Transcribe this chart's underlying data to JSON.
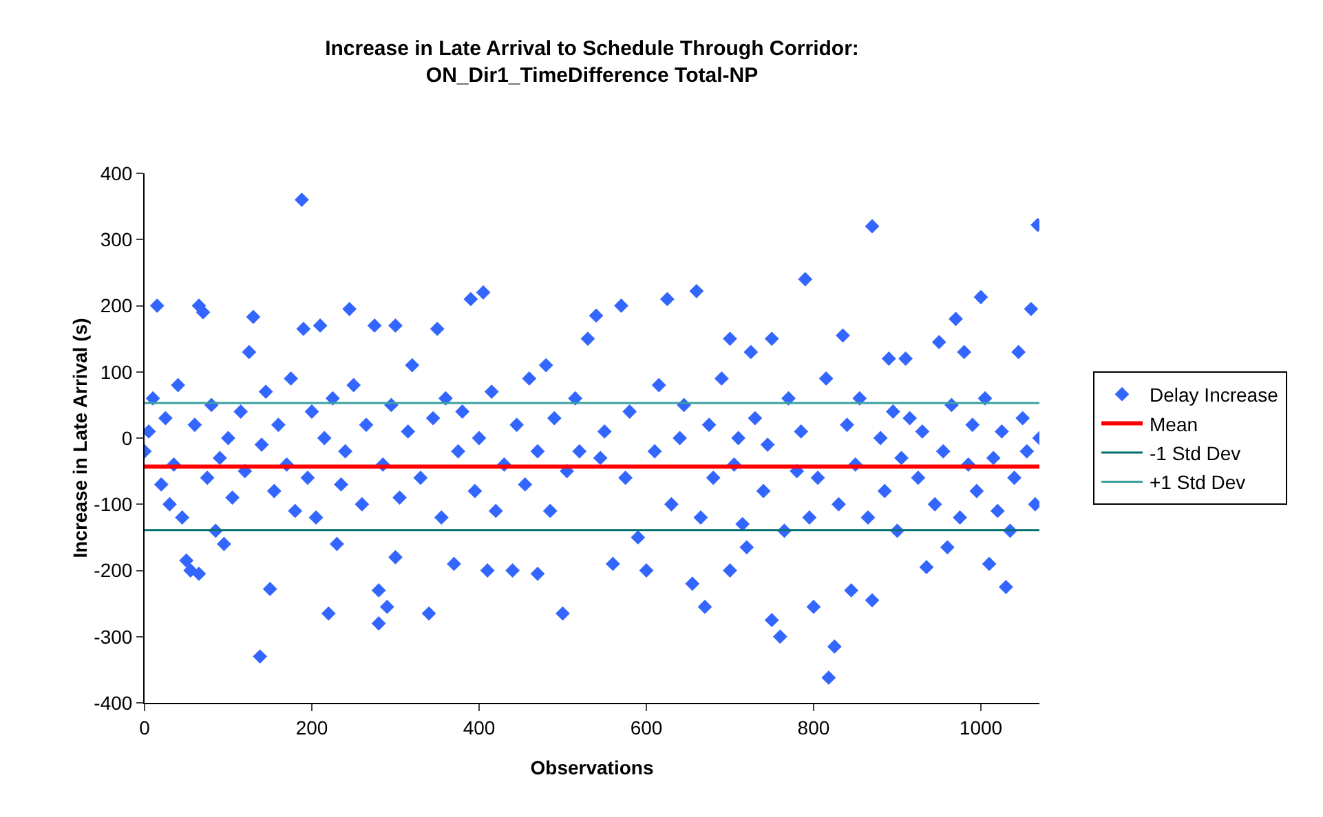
{
  "chart_data": {
    "type": "scatter",
    "title": "Increase in Late Arrival to Schedule Through Corridor:\nON_Dir1_TimeDifference Total-NP",
    "xlabel": "Observations",
    "ylabel": "Increase in Late Arrival (s)",
    "xlim": [
      0,
      1070
    ],
    "xticks": [
      0,
      200,
      400,
      600,
      800,
      1000
    ],
    "ylim": [
      -400,
      400
    ],
    "yticks": [
      -400,
      -300,
      -200,
      -100,
      0,
      100,
      200,
      300,
      400
    ],
    "grid": false,
    "legend": "right",
    "series": [
      {
        "name": "Delay Increase",
        "marker": "diamond",
        "color": "#3366ff",
        "x": [
          188,
          870,
          1068,
          790,
          405,
          390,
          660,
          15,
          65,
          70,
          245,
          130,
          625,
          1000,
          570,
          540,
          275,
          300,
          210,
          350,
          190,
          750,
          835,
          1060,
          1045,
          950,
          890,
          910,
          480,
          700,
          725,
          970,
          980,
          818,
          825,
          138,
          340,
          500,
          280,
          150,
          220,
          760,
          750,
          655,
          670,
          600,
          560,
          1030,
          935,
          800,
          845,
          870,
          440,
          55,
          65,
          50,
          95,
          410,
          470,
          1010,
          960,
          370,
          300,
          280,
          290,
          720,
          700,
          85,
          180,
          230,
          0,
          5,
          10,
          20,
          25,
          30,
          35,
          40,
          45,
          60,
          75,
          80,
          90,
          100,
          105,
          115,
          120,
          125,
          140,
          145,
          155,
          160,
          170,
          175,
          195,
          200,
          205,
          215,
          225,
          235,
          240,
          250,
          260,
          265,
          285,
          295,
          305,
          315,
          320,
          330,
          345,
          355,
          360,
          375,
          380,
          395,
          400,
          415,
          420,
          430,
          445,
          455,
          460,
          470,
          485,
          490,
          505,
          515,
          520,
          530,
          545,
          550,
          575,
          580,
          590,
          610,
          615,
          630,
          640,
          645,
          665,
          675,
          680,
          690,
          705,
          710,
          715,
          730,
          740,
          745,
          765,
          770,
          780,
          785,
          795,
          805,
          815,
          830,
          840,
          850,
          855,
          865,
          880,
          885,
          895,
          900,
          905,
          915,
          925,
          930,
          945,
          955,
          965,
          975,
          985,
          990,
          995,
          1005,
          1015,
          1020,
          1025,
          1035,
          1040,
          1050,
          1055,
          1065,
          1070
        ],
        "values": [
          360,
          320,
          322,
          240,
          220,
          210,
          222,
          200,
          200,
          190,
          195,
          183,
          210,
          213,
          200,
          185,
          170,
          170,
          170,
          165,
          165,
          150,
          155,
          195,
          130,
          145,
          120,
          120,
          110,
          150,
          130,
          180,
          130,
          -362,
          -315,
          -330,
          -265,
          -265,
          -280,
          -228,
          -265,
          -300,
          -275,
          -220,
          -255,
          -200,
          -190,
          -225,
          -195,
          -255,
          -230,
          -245,
          -200,
          -200,
          -205,
          -185,
          -160,
          -200,
          -205,
          -190,
          -165,
          -190,
          -180,
          -230,
          -255,
          -165,
          -200,
          -140,
          -110,
          -160,
          -20,
          10,
          60,
          -70,
          30,
          -100,
          -40,
          80,
          -120,
          20,
          -60,
          50,
          -30,
          0,
          -90,
          40,
          -50,
          130,
          -10,
          70,
          -80,
          20,
          -40,
          90,
          -60,
          40,
          -120,
          0,
          60,
          -70,
          -20,
          80,
          -100,
          20,
          -40,
          50,
          -90,
          10,
          110,
          -60,
          30,
          -120,
          60,
          -20,
          40,
          -80,
          0,
          70,
          -110,
          -40,
          20,
          -70,
          90,
          -20,
          -110,
          30,
          -50,
          60,
          -20,
          150,
          -30,
          10,
          -60,
          40,
          -150,
          -20,
          80,
          -100,
          0,
          50,
          -120,
          20,
          -60,
          90,
          -40,
          0,
          -130,
          30,
          -80,
          -10,
          -140,
          60,
          -50,
          10,
          -120,
          -60,
          90,
          -100,
          20,
          -40,
          60,
          -120,
          0,
          -80,
          40,
          -140,
          -30,
          30,
          -60,
          10,
          -100,
          -20,
          50,
          -120,
          -40,
          20,
          -80,
          60,
          -30,
          -110,
          10,
          -140,
          -60,
          30,
          -20,
          -100,
          0
        ]
      },
      {
        "name": "Mean",
        "type": "line",
        "marker": "none",
        "color": "#ff0000",
        "x": [
          0,
          1070
        ],
        "values": [
          -43,
          -43
        ]
      },
      {
        "name": "-1 Std Dev",
        "type": "line",
        "marker": "none",
        "color": "#006f6f",
        "x": [
          0,
          1070
        ],
        "values": [
          -139,
          -139
        ]
      },
      {
        "name": "+1 Std Dev",
        "type": "line",
        "marker": "none",
        "color": "#3aa0a0",
        "x": [
          0,
          1070
        ],
        "values": [
          53,
          53
        ]
      }
    ]
  }
}
